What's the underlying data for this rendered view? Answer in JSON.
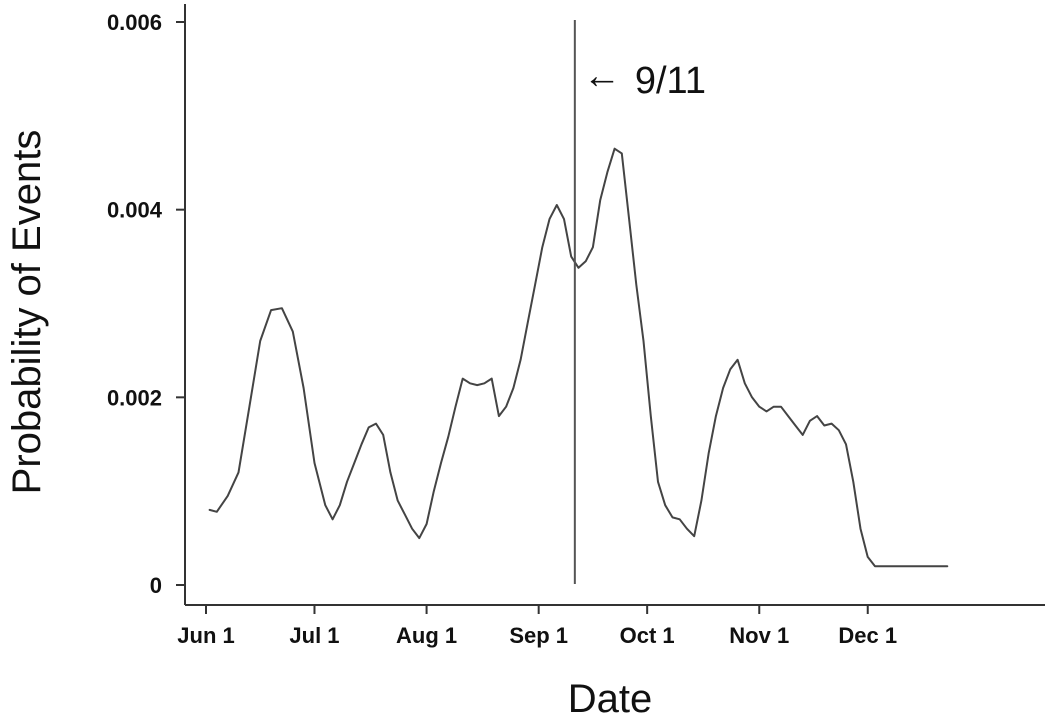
{
  "chart_data": {
    "type": "line",
    "xlabel": "Date",
    "ylabel": "Probability of Events",
    "xlim": [
      0,
      224
    ],
    "ylim": [
      0,
      0.006
    ],
    "x_ticks": [
      {
        "day": 0,
        "label": "Jun 1"
      },
      {
        "day": 30,
        "label": "Jul 1"
      },
      {
        "day": 61,
        "label": "Aug 1"
      },
      {
        "day": 92,
        "label": "Sep 1"
      },
      {
        "day": 122,
        "label": "Oct 1"
      },
      {
        "day": 153,
        "label": "Nov 1"
      },
      {
        "day": 183,
        "label": "Dec 1"
      }
    ],
    "y_ticks": [
      {
        "value": 0,
        "label": "0"
      },
      {
        "value": 0.002,
        "label": "0.002"
      },
      {
        "value": 0.004,
        "label": "0.004"
      },
      {
        "value": 0.006,
        "label": "0.006"
      }
    ],
    "grid": false,
    "annotation": {
      "day": 102,
      "label": "9/11",
      "arrow": "←"
    },
    "series": [
      {
        "color": "#444444",
        "x": [
          1,
          3,
          6,
          9,
          12,
          15,
          18,
          21,
          24,
          27,
          30,
          33,
          35,
          37,
          39,
          41,
          43,
          45,
          47,
          49,
          51,
          53,
          55,
          57,
          59,
          61,
          63,
          65,
          67,
          69,
          71,
          73,
          75,
          77,
          79,
          81,
          83,
          85,
          87,
          89,
          91,
          93,
          95,
          97,
          99,
          101,
          103,
          105,
          107,
          109,
          111,
          113,
          115,
          117,
          119,
          121,
          123,
          125,
          127,
          129,
          131,
          133,
          135,
          137,
          139,
          141,
          143,
          145,
          147,
          149,
          151,
          153,
          155,
          157,
          159,
          161,
          163,
          165,
          167,
          169,
          171,
          173,
          175,
          177,
          179,
          181,
          183,
          185,
          187,
          189,
          191,
          193,
          195,
          197,
          199,
          201,
          203,
          205
        ],
        "y": [
          0.0008,
          0.00078,
          0.00095,
          0.0012,
          0.0019,
          0.0026,
          0.00293,
          0.00295,
          0.0027,
          0.0021,
          0.0013,
          0.00085,
          0.0007,
          0.00085,
          0.0011,
          0.0013,
          0.0015,
          0.00168,
          0.00172,
          0.0016,
          0.0012,
          0.0009,
          0.00075,
          0.0006,
          0.0005,
          0.00065,
          0.001,
          0.0013,
          0.00158,
          0.0019,
          0.0022,
          0.00215,
          0.00213,
          0.00215,
          0.0022,
          0.0018,
          0.0019,
          0.0021,
          0.0024,
          0.0028,
          0.0032,
          0.0036,
          0.0039,
          0.00405,
          0.0039,
          0.0035,
          0.00338,
          0.00345,
          0.0036,
          0.0041,
          0.0044,
          0.00465,
          0.0046,
          0.0039,
          0.0032,
          0.0026,
          0.0018,
          0.0011,
          0.00085,
          0.00072,
          0.0007,
          0.0006,
          0.00052,
          0.0009,
          0.0014,
          0.0018,
          0.0021,
          0.0023,
          0.0024,
          0.00215,
          0.002,
          0.0019,
          0.00185,
          0.0019,
          0.0019,
          0.0018,
          0.0017,
          0.0016,
          0.00175,
          0.0018,
          0.0017,
          0.00172,
          0.00165,
          0.0015,
          0.0011,
          0.0006,
          0.0003,
          0.0002,
          0.0002,
          0.0002,
          0.0002,
          0.0002,
          0.0002,
          0.0002,
          0.0002,
          0.0002,
          0.0002,
          0.0002
        ]
      }
    ]
  }
}
